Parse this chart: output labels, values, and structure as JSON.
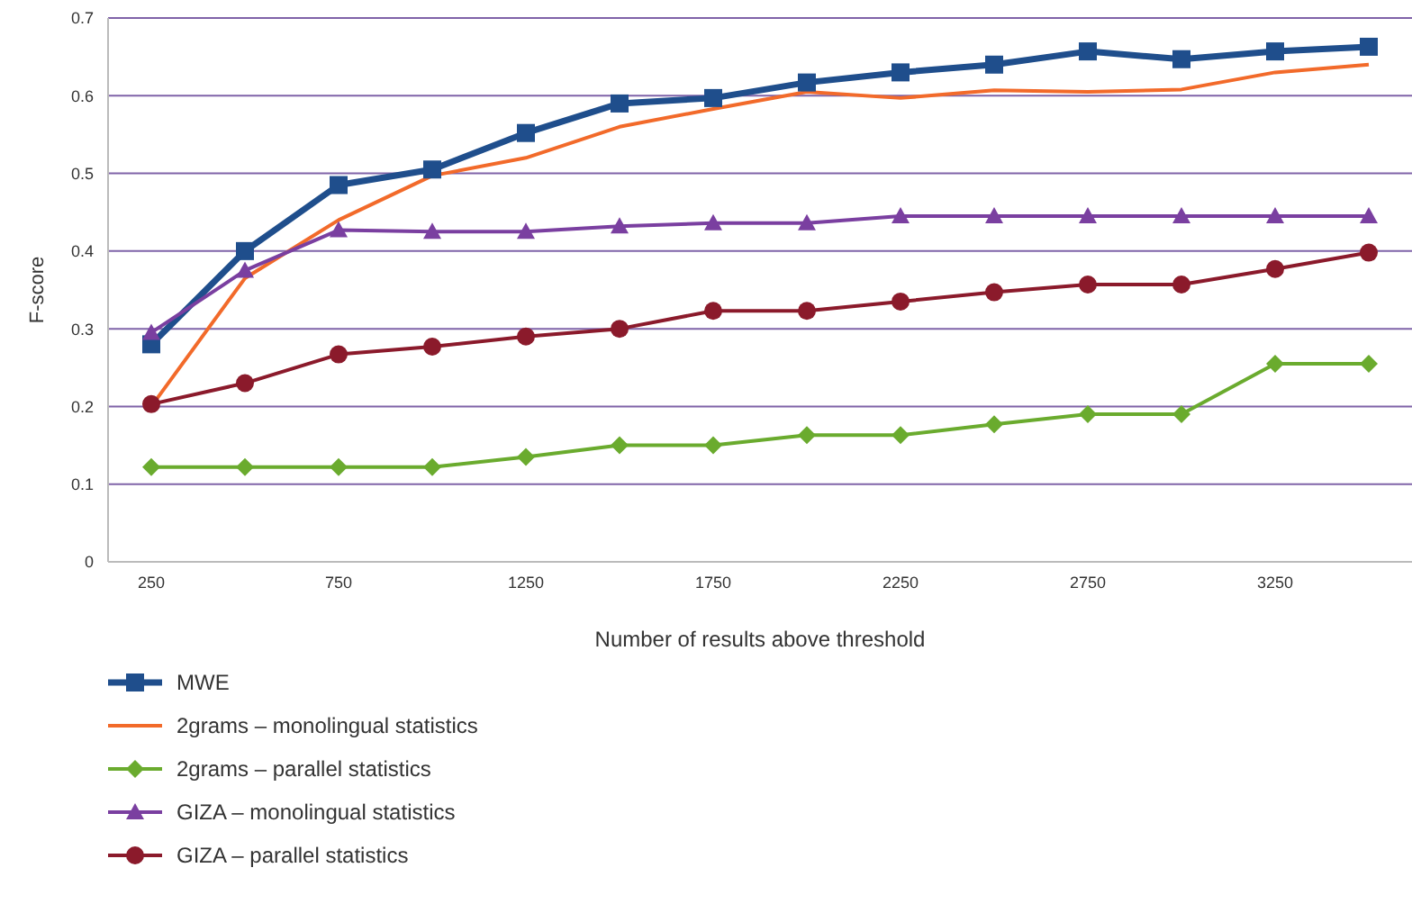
{
  "chart_data": {
    "type": "line",
    "xlabel": "Number of results above threshold",
    "ylabel": "F-score",
    "categories": [
      "250",
      null,
      "750",
      null,
      "1250",
      null,
      "1750",
      null,
      "2250",
      null,
      "2750",
      null,
      "3250",
      null
    ],
    "ylim": [
      0,
      0.7
    ],
    "yticks": [
      0,
      0.1,
      0.2,
      0.3,
      0.4,
      0.5,
      0.6,
      0.7
    ],
    "grid": "y",
    "legend": "bottom",
    "series": [
      {
        "name": "MWE",
        "color": "#1f4e8c",
        "marker": "square",
        "values": [
          0.28,
          0.4,
          0.485,
          0.505,
          0.552,
          0.59,
          0.597,
          0.617,
          0.63,
          0.64,
          0.657,
          0.647,
          0.657,
          0.663
        ]
      },
      {
        "name": "2grams – monolingual statistics",
        "color": "#f26a2a",
        "marker": "none",
        "values": [
          0.2,
          0.365,
          0.44,
          0.497,
          0.52,
          0.56,
          0.583,
          0.605,
          0.597,
          0.607,
          0.605,
          0.608,
          0.63,
          0.64
        ]
      },
      {
        "name": "2grams – parallel statistics",
        "color": "#6aab2e",
        "marker": "diamond",
        "values": [
          0.122,
          0.122,
          0.122,
          0.122,
          0.135,
          0.15,
          0.15,
          0.163,
          0.163,
          0.177,
          0.19,
          0.19,
          0.255,
          0.255
        ]
      },
      {
        "name": "GIZA – monolingual statistics",
        "color": "#7a3fa0",
        "marker": "triangle",
        "values": [
          0.295,
          0.375,
          0.427,
          0.425,
          0.425,
          0.432,
          0.436,
          0.436,
          0.445,
          0.445,
          0.445,
          0.445,
          0.445,
          0.445
        ]
      },
      {
        "name": "GIZA – parallel statistics",
        "color": "#8b1a2b",
        "marker": "circle",
        "values": [
          0.203,
          0.23,
          0.267,
          0.277,
          0.29,
          0.3,
          0.323,
          0.323,
          0.335,
          0.347,
          0.357,
          0.357,
          0.377,
          0.398
        ]
      }
    ]
  }
}
